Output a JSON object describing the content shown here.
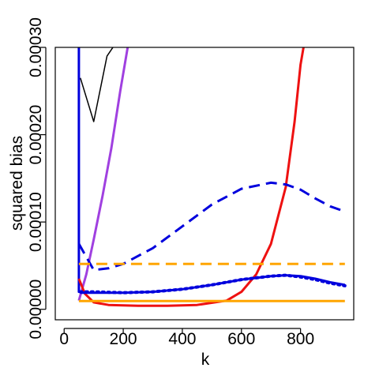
{
  "chart_data": {
    "type": "line",
    "title": "",
    "xlabel": "k",
    "ylabel": "squared bias",
    "xlim": [
      -30,
      980
    ],
    "ylim": [
      -1.2e-05,
      0.0003
    ],
    "x_ticks": [
      0,
      200,
      400,
      600,
      800
    ],
    "x_tick_labels": [
      "0",
      "200",
      "400",
      "600",
      "800"
    ],
    "y_ticks": [
      0,
      0.0001,
      0.0002,
      0.0003
    ],
    "y_tick_labels": [
      "0.00000",
      "0.00010",
      "0.00020",
      "0.00030"
    ],
    "grid": false,
    "legend": "none",
    "series": [
      {
        "color": "#000000",
        "dash": "solid",
        "width": 1.5,
        "x": [
          55,
          100,
          145,
          165
        ],
        "y": [
          0.000265,
          0.000215,
          0.00029,
          0.0003
        ]
      },
      {
        "color": "#A040E0",
        "dash": "solid",
        "width": 3,
        "x": [
          50,
          75,
          100,
          130,
          160,
          190,
          215
        ],
        "y": [
          1e-05,
          4e-05,
          8e-05,
          0.00013,
          0.000185,
          0.00025,
          0.0003
        ]
      },
      {
        "color": "#0000DD",
        "dash": "solid",
        "width": 3,
        "x": [
          50,
          50,
          52
        ],
        "y": [
          0.0003,
          2e-05,
          2e-05
        ]
      },
      {
        "color": "#EE1111",
        "dash": "solid",
        "width": 3,
        "x": [
          50,
          70,
          100,
          150,
          250,
          350,
          450,
          550,
          600,
          650,
          700,
          750,
          780,
          800,
          810
        ],
        "y": [
          3.5e-05,
          1.8e-05,
          8e-06,
          5e-06,
          4e-06,
          4e-06,
          5e-06,
          1e-05,
          2e-05,
          4e-05,
          7.5e-05,
          0.00014,
          0.000215,
          0.00028,
          0.0003
        ]
      },
      {
        "color": "#0000DD",
        "dash": "dashed",
        "width": 3,
        "x": [
          50,
          75,
          100,
          150,
          200,
          300,
          400,
          500,
          600,
          700,
          750,
          800,
          850,
          900,
          950
        ],
        "y": [
          7.5e-05,
          6e-05,
          4.5e-05,
          4.7e-05,
          5.2e-05,
          7e-05,
          9.5e-05,
          0.00012,
          0.000138,
          0.000145,
          0.000143,
          0.000137,
          0.000127,
          0.000118,
          0.000112
        ]
      },
      {
        "color": "#0000DD",
        "dash": "dotted",
        "width": 4,
        "x": [
          55,
          100,
          200,
          300,
          400,
          500,
          600,
          700,
          750,
          800,
          850,
          900,
          950
        ],
        "y": [
          2e-05,
          2e-05,
          1.9e-05,
          2e-05,
          2.3e-05,
          2.8e-05,
          3.4e-05,
          3.8e-05,
          3.9e-05,
          3.7e-05,
          3.4e-05,
          3e-05,
          2.7e-05
        ]
      },
      {
        "color": "#0000DD",
        "dash": "solid",
        "width": 3,
        "x": [
          55,
          100,
          200,
          300,
          400,
          500,
          600,
          700,
          750,
          800,
          850,
          900,
          950
        ],
        "y": [
          1.9e-05,
          1.9e-05,
          1.9e-05,
          2e-05,
          2.3e-05,
          2.8e-05,
          3.4e-05,
          3.8e-05,
          3.9e-05,
          3.8e-05,
          3.5e-05,
          3.1e-05,
          2.8e-05
        ]
      },
      {
        "color": "#FFA500",
        "dash": "dashed",
        "width": 3,
        "x": [
          50,
          950
        ],
        "y": [
          5.2e-05,
          5.2e-05
        ]
      },
      {
        "color": "#FFA500",
        "dash": "solid",
        "width": 3,
        "x": [
          50,
          950
        ],
        "y": [
          9.5e-06,
          9.5e-06
        ]
      }
    ]
  }
}
